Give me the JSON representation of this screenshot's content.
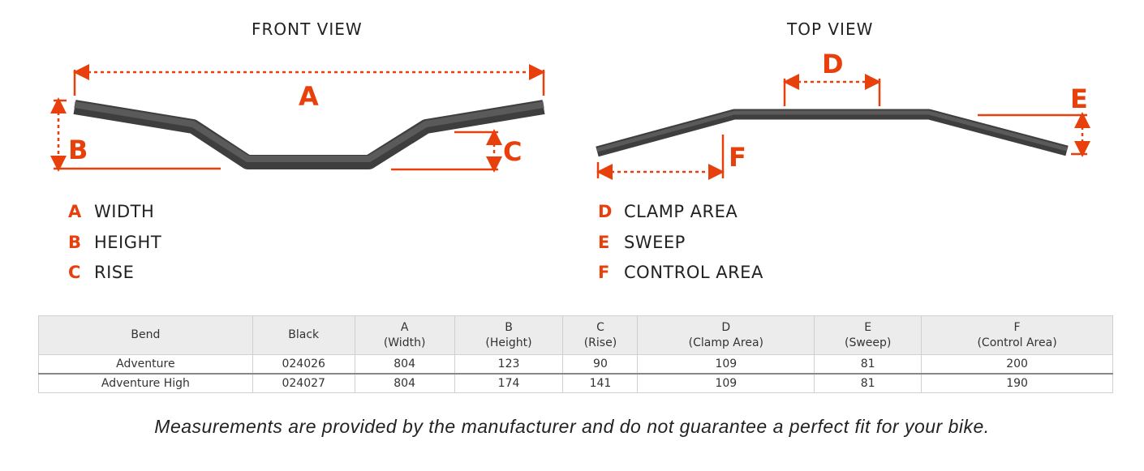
{
  "colors": {
    "accent": "#e8400c",
    "bar": "#4a4a4a"
  },
  "front": {
    "title": "FRONT VIEW",
    "labels": {
      "a": "A",
      "b": "B",
      "c": "C"
    },
    "legend": [
      {
        "key": "A",
        "label": "WIDTH"
      },
      {
        "key": "B",
        "label": "HEIGHT"
      },
      {
        "key": "C",
        "label": "RISE"
      }
    ]
  },
  "top": {
    "title": "TOP VIEW",
    "labels": {
      "d": "D",
      "e": "E",
      "f": "F"
    },
    "legend": [
      {
        "key": "D",
        "label": "CLAMP AREA"
      },
      {
        "key": "E",
        "label": "SWEEP"
      },
      {
        "key": "F",
        "label": "CONTROL AREA"
      }
    ]
  },
  "table": {
    "headers": [
      [
        "",
        "Bend"
      ],
      [
        "",
        "Black"
      ],
      [
        "A",
        "(Width)"
      ],
      [
        "B",
        "(Height)"
      ],
      [
        "C",
        "(Rise)"
      ],
      [
        "D",
        "(Clamp Area)"
      ],
      [
        "E",
        "(Sweep)"
      ],
      [
        "F",
        "(Control Area)"
      ]
    ],
    "rows": [
      [
        "Adventure",
        "024026",
        "804",
        "123",
        "90",
        "109",
        "81",
        "200"
      ],
      [
        "Adventure High",
        "024027",
        "804",
        "174",
        "141",
        "109",
        "81",
        "190"
      ]
    ]
  },
  "note": "Measurements are provided by the manufacturer and do not guarantee a perfect fit for your bike."
}
